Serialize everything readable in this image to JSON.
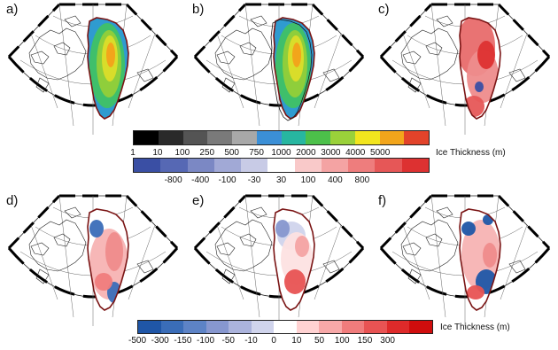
{
  "panels": [
    {
      "label": "a)",
      "kind": "thickness",
      "hole_outline": false
    },
    {
      "label": "b)",
      "kind": "thickness",
      "hole_outline": true
    },
    {
      "label": "c)",
      "kind": "diff_red",
      "hole_outline": false
    },
    {
      "label": "d)",
      "kind": "diff_mixed_d",
      "hole_outline": false
    },
    {
      "label": "e)",
      "kind": "diff_mixed_e",
      "hole_outline": false
    },
    {
      "label": "f)",
      "kind": "diff_mixed_f",
      "hole_outline": false
    }
  ],
  "colorbar_top": {
    "title": "Ice Thickness (m)",
    "colors": [
      "#000000",
      "#2a2a2a",
      "#545454",
      "#7a7a7a",
      "#a8a8a8",
      "#3b8fd6",
      "#27b6a0",
      "#4cc04a",
      "#9ad13a",
      "#f2e51e",
      "#f2a51b",
      "#e2432a"
    ],
    "ticks": [
      "1",
      "10",
      "100",
      "250",
      "500",
      "750",
      "1000",
      "2000",
      "3000",
      "4000",
      "5000"
    ]
  },
  "colorbar_mid": {
    "colors": [
      "#3a4fa4",
      "#5668b4",
      "#7b88c4",
      "#a1a9d6",
      "#c8cbe6",
      "#ffffff",
      "#f9c9c9",
      "#f4a3a3",
      "#ee7d7d",
      "#e65757",
      "#dd3131"
    ],
    "ticks": [
      "-800",
      "-400",
      "-100",
      "-30",
      "30",
      "100",
      "400",
      "800"
    ]
  },
  "colorbar_bottom": {
    "title": "Ice Thickness (m)",
    "colors": [
      "#1f56a7",
      "#3a6db8",
      "#5d83c6",
      "#8797cf",
      "#abb3dc",
      "#d0d4ec",
      "#ffffff",
      "#ffd2d2",
      "#f7a8a8",
      "#f07c7c",
      "#e85353",
      "#de2a2a",
      "#d00d0d"
    ],
    "ticks": [
      "-500",
      "-300",
      "-150",
      "-100",
      "-50",
      "-10",
      "0",
      "10",
      "50",
      "100",
      "150",
      "300"
    ]
  }
}
